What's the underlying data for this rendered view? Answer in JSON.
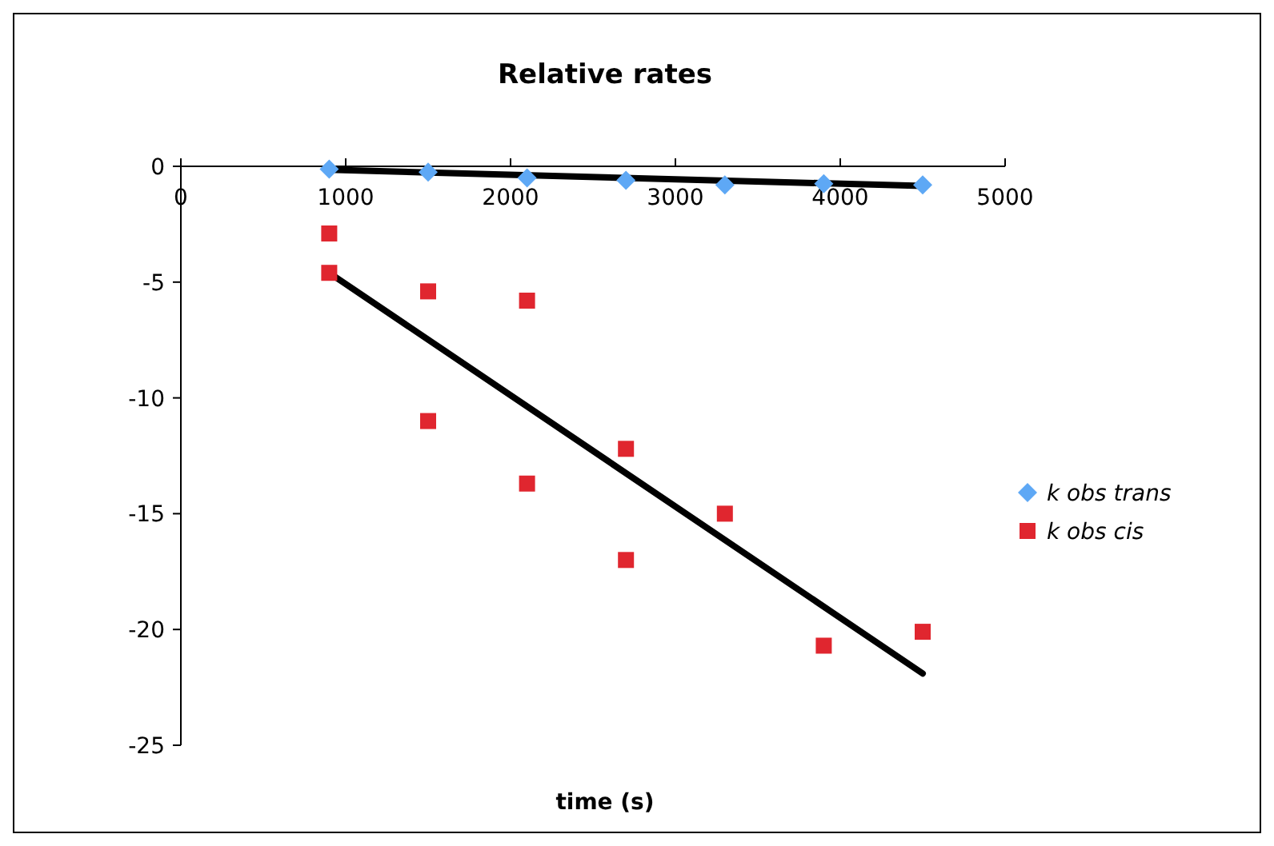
{
  "chart_data": {
    "type": "scatter",
    "title": "Relative rates",
    "xlabel": "time (s)",
    "xlim": [
      0,
      5000
    ],
    "xticks": [
      0,
      1000,
      2000,
      3000,
      4000,
      5000
    ],
    "ylim": [
      -25,
      0
    ],
    "yticks": [
      -25,
      -20,
      -15,
      -10,
      -5,
      0
    ],
    "grid": false,
    "legend": "right",
    "series": [
      {
        "name": "k obs trans",
        "color": "#5ea8f5",
        "marker": "diamond",
        "x": [
          900,
          1500,
          2100,
          2700,
          3300,
          3900,
          4500
        ],
        "values": [
          -0.12,
          -0.25,
          -0.5,
          -0.6,
          -0.8,
          -0.75,
          -0.8
        ]
      },
      {
        "name": "k obs cis",
        "color": "#e0262f",
        "marker": "square",
        "x": [
          900,
          900,
          1500,
          1500,
          2100,
          2100,
          2700,
          2700,
          3300,
          3900,
          4500
        ],
        "values": [
          -2.9,
          -4.6,
          -5.4,
          -11,
          -5.8,
          -13.7,
          -12.2,
          -17,
          -15,
          -20.7,
          -20.1
        ]
      },
      {
        "type": "line",
        "color": "#000000",
        "marker": "none",
        "x": [
          900,
          4500
        ],
        "values": [
          -0.15,
          -0.85
        ]
      },
      {
        "type": "line",
        "color": "#000000",
        "marker": "none",
        "x": [
          900,
          4500
        ],
        "values": [
          -4.6,
          -21.9
        ]
      }
    ]
  }
}
